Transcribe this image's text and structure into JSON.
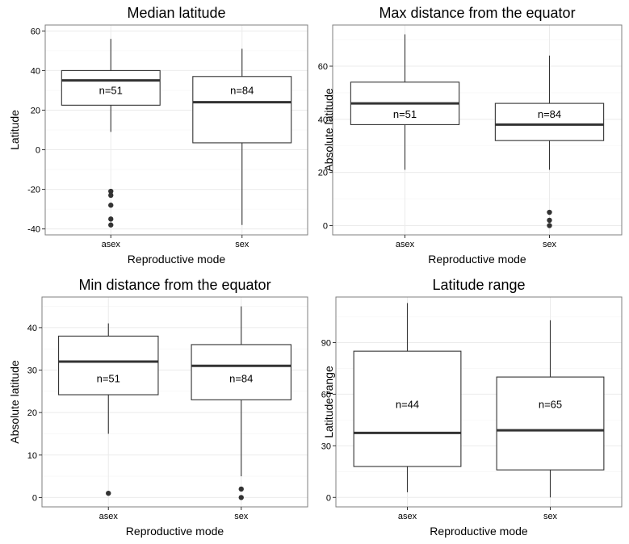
{
  "chart_data": [
    {
      "type": "box",
      "title": "Median latitude",
      "xlabel": "Reproductive mode",
      "ylabel": "Latitude",
      "ylim": [
        -43,
        63
      ],
      "yticks": [
        -40,
        -20,
        0,
        20,
        40,
        60
      ],
      "ytick_labels": [
        "-40",
        "-20",
        "0",
        "20",
        "40",
        "60"
      ],
      "grid": true,
      "categories": [
        "asex",
        "sex"
      ],
      "boxes": [
        {
          "category": "asex",
          "whisker_low": 9,
          "q1": 22.5,
          "median": 35,
          "q3": 40,
          "whisker_high": 56,
          "outliers": [
            -21,
            -23,
            -28,
            -35,
            -38
          ],
          "n_label": "n=51",
          "n_label_y": 30
        },
        {
          "category": "sex",
          "whisker_low": -38,
          "q1": 3.5,
          "median": 24,
          "q3": 37,
          "whisker_high": 51,
          "outliers": [],
          "n_label": "n=84",
          "n_label_y": 30
        }
      ]
    },
    {
      "type": "box",
      "title": "Max distance from the equator",
      "xlabel": "Reproductive mode",
      "ylabel": "Absolute latitude",
      "ylim": [
        -3.5,
        75.5
      ],
      "yticks": [
        0,
        20,
        40,
        60
      ],
      "ytick_labels": [
        "0",
        "20",
        "40",
        "60"
      ],
      "grid": true,
      "categories": [
        "asex",
        "sex"
      ],
      "boxes": [
        {
          "category": "asex",
          "whisker_low": 21,
          "q1": 38,
          "median": 46,
          "q3": 54,
          "whisker_high": 72,
          "outliers": [],
          "n_label": "n=51",
          "n_label_y": 42
        },
        {
          "category": "sex",
          "whisker_low": 21,
          "q1": 32,
          "median": 38,
          "q3": 46,
          "whisker_high": 64,
          "outliers": [
            0,
            2,
            5
          ],
          "n_label": "n=84",
          "n_label_y": 42
        }
      ]
    },
    {
      "type": "box",
      "title": "Min distance from the equator",
      "xlabel": "Reproductive mode",
      "ylabel": "Absolute latitude",
      "ylim": [
        -2.2,
        47.2
      ],
      "yticks": [
        0,
        10,
        20,
        30,
        40
      ],
      "ytick_labels": [
        "0",
        "10",
        "20",
        "30",
        "40"
      ],
      "grid": true,
      "categories": [
        "asex",
        "sex"
      ],
      "boxes": [
        {
          "category": "asex",
          "whisker_low": 15,
          "q1": 24.2,
          "median": 32,
          "q3": 38,
          "whisker_high": 41,
          "outliers": [
            1
          ],
          "n_label": "n=51",
          "n_label_y": 28
        },
        {
          "category": "sex",
          "whisker_low": 5,
          "q1": 23,
          "median": 31,
          "q3": 36,
          "whisker_high": 45,
          "outliers": [
            0,
            2
          ],
          "n_label": "n=84",
          "n_label_y": 28
        }
      ]
    },
    {
      "type": "box",
      "title": "Latitude range",
      "xlabel": "Reproductive mode",
      "ylabel": "Latitude range",
      "ylim": [
        -5.5,
        116.5
      ],
      "yticks": [
        0,
        30,
        60,
        90
      ],
      "ytick_labels": [
        "0",
        "30",
        "60",
        "90"
      ],
      "grid": true,
      "categories": [
        "asex",
        "sex"
      ],
      "boxes": [
        {
          "category": "asex",
          "whisker_low": 3,
          "q1": 18,
          "median": 37.5,
          "q3": 85,
          "whisker_high": 113,
          "outliers": [],
          "n_label": "n=44",
          "n_label_y": 54
        },
        {
          "category": "sex",
          "whisker_low": 0,
          "q1": 16,
          "median": 39,
          "q3": 70,
          "whisker_high": 103,
          "outliers": [],
          "n_label": "n=65",
          "n_label_y": 54
        }
      ]
    }
  ]
}
